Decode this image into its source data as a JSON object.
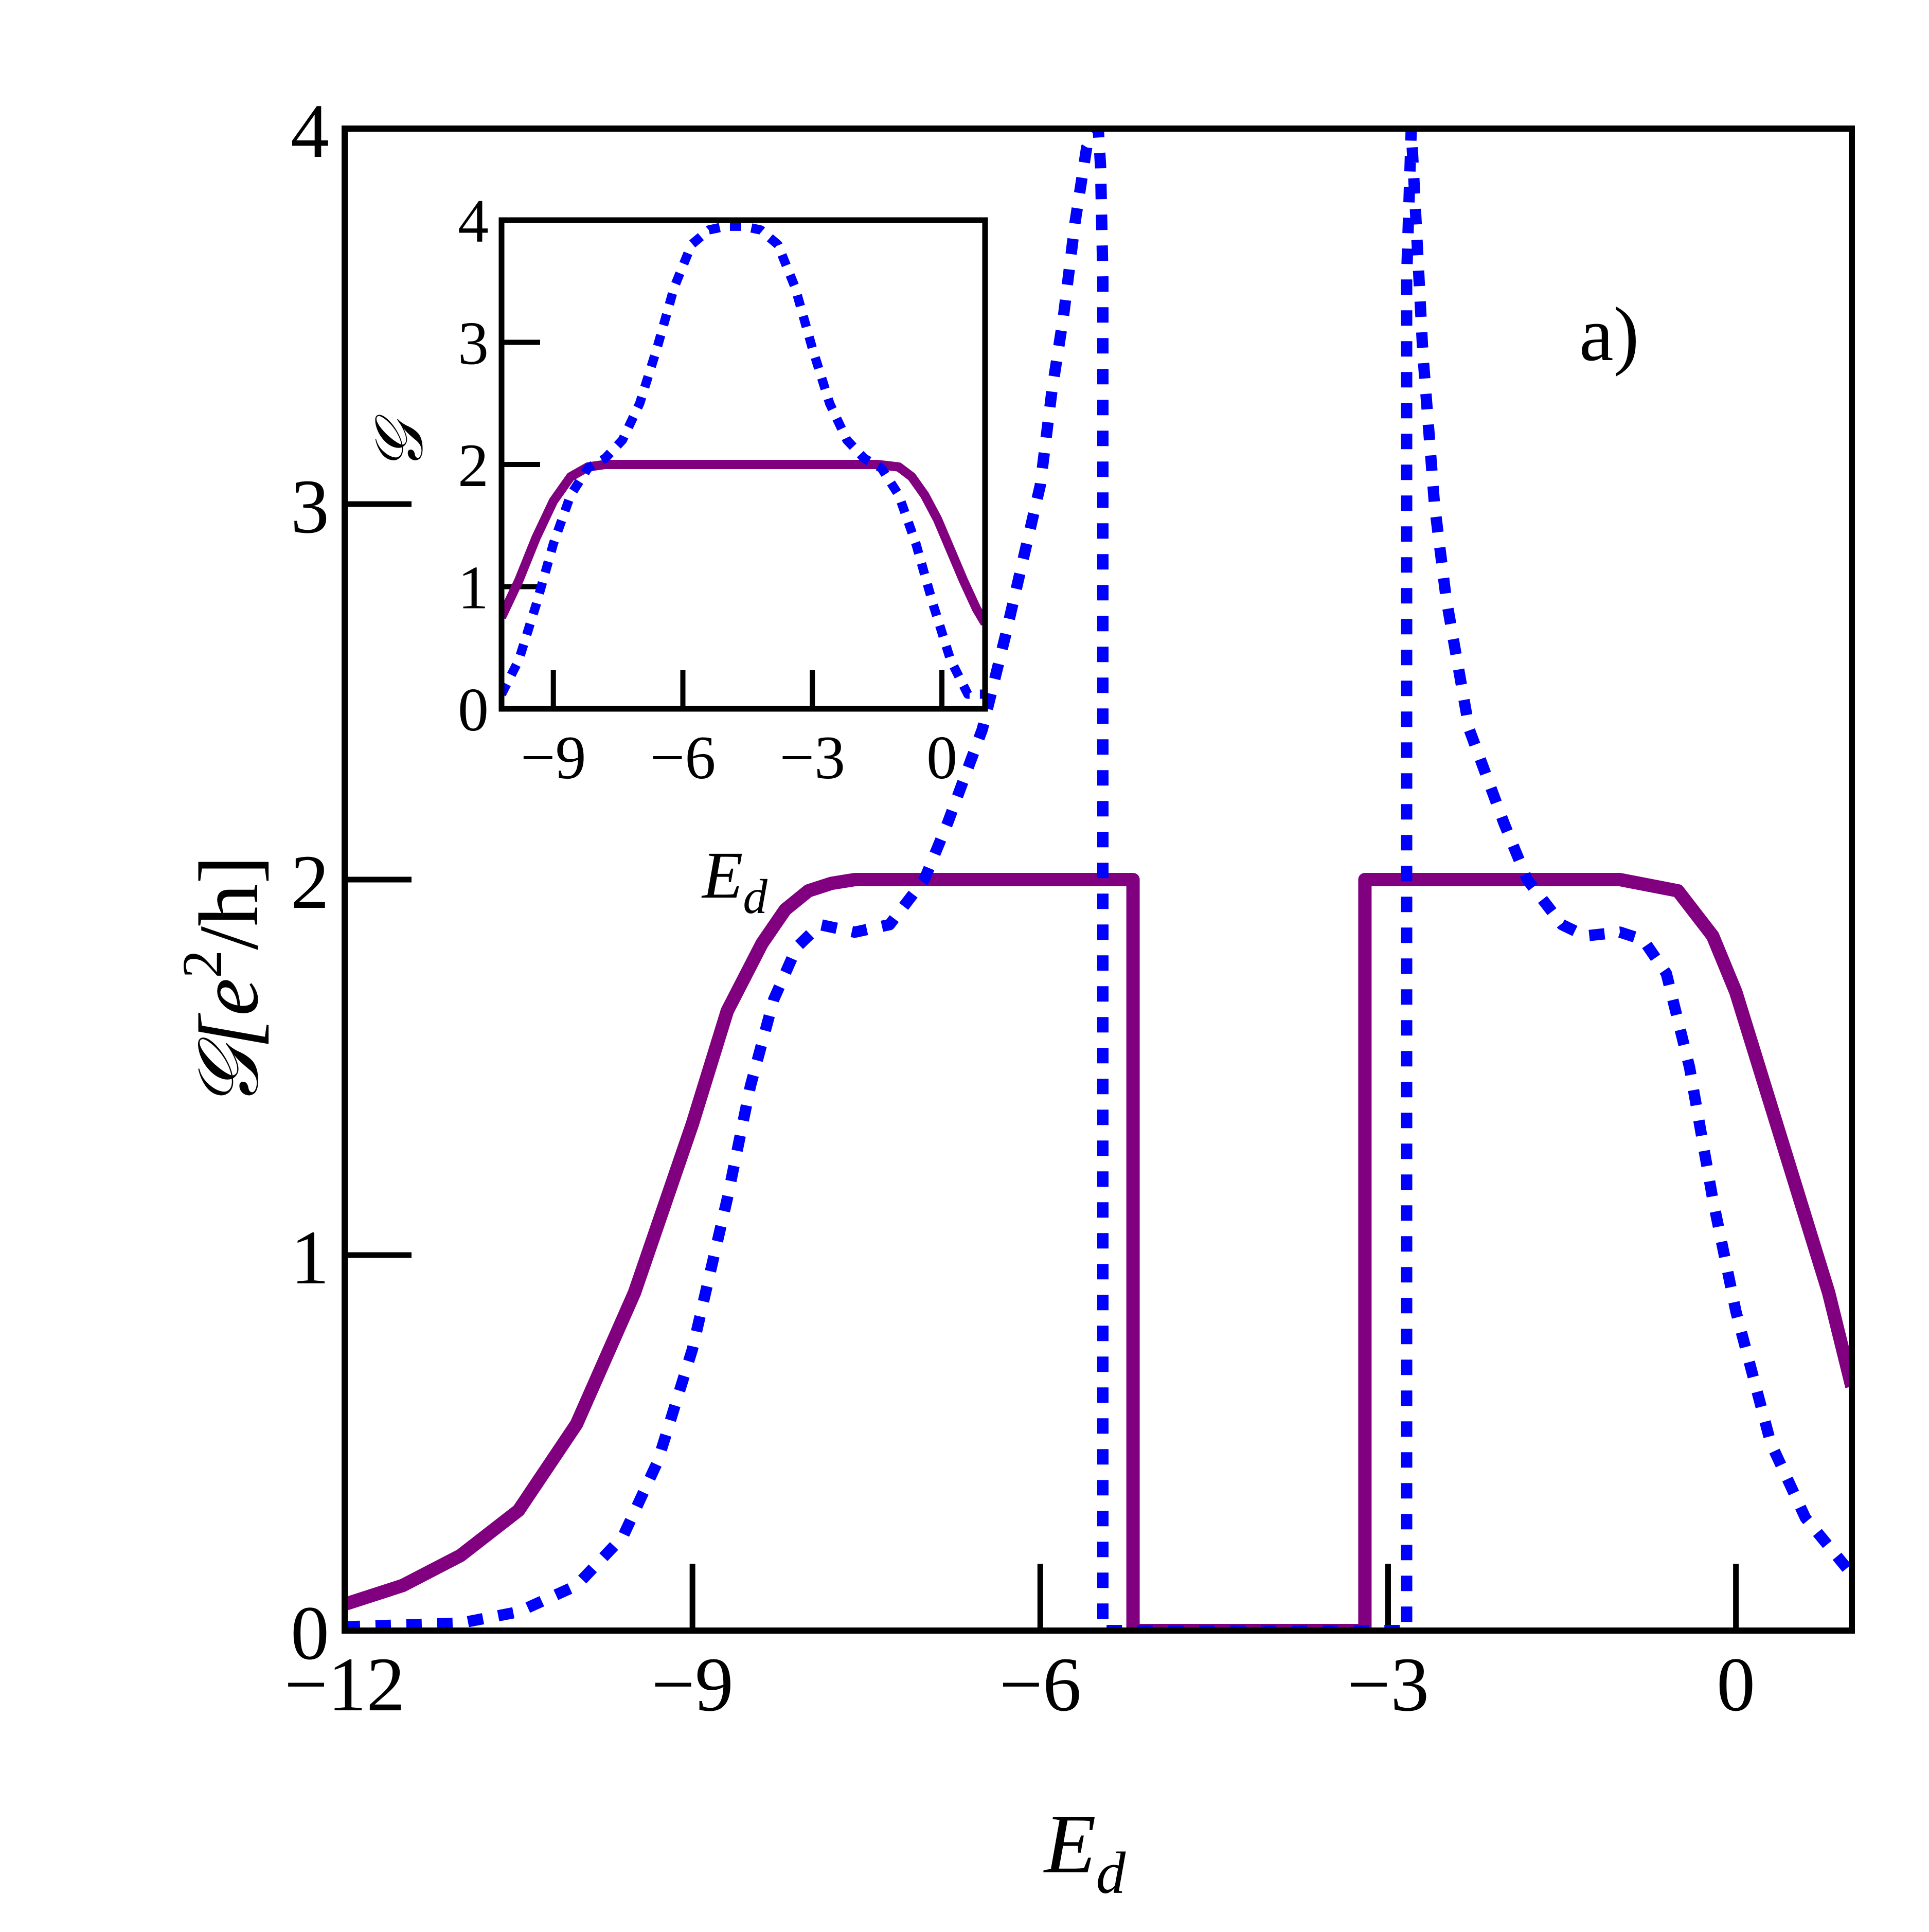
{
  "chart_data": [
    {
      "type": "line",
      "panel_label": "a)",
      "xlabel": "E",
      "xlabel_sub": "d",
      "ylabel": "𝒢[e",
      "ylabel_sup": "2",
      "ylabel_tail": "/h]",
      "xlim": [
        -12,
        1
      ],
      "ylim": [
        0,
        4
      ],
      "xticks": [
        -12,
        -9,
        -6,
        -3,
        0
      ],
      "xtick_labels": [
        "−12",
        "−9",
        "−6",
        "−3",
        "0"
      ],
      "yticks": [
        0,
        1,
        2,
        3,
        4
      ],
      "ytick_labels": [
        "0",
        "1",
        "2",
        "3",
        "4"
      ],
      "grid": false,
      "series": [
        {
          "style": "solid",
          "color": "#800080",
          "x": [
            -12,
            -11.5,
            -11,
            -10.5,
            -10,
            -9.5,
            -9,
            -8.7,
            -8.4,
            -8.2,
            -8,
            -7.8,
            -7.6,
            -7.4,
            -7.2,
            -7,
            -6.5,
            -6,
            -5.5,
            -5.2,
            -5.2,
            -5,
            -4.5,
            -4,
            -3.5,
            -3.2,
            -3.2,
            -3,
            -2.5,
            -2,
            -1.5,
            -1,
            -0.5,
            -0.2,
            0,
            0.2,
            0.5,
            0.8,
            1
          ],
          "y": [
            0.07,
            0.12,
            0.2,
            0.32,
            0.55,
            0.9,
            1.35,
            1.65,
            1.83,
            1.92,
            1.97,
            1.99,
            2,
            2,
            2,
            2,
            2,
            2,
            2,
            2,
            0,
            0,
            0,
            0,
            0,
            0,
            2,
            2,
            2,
            2,
            2,
            2,
            1.97,
            1.85,
            1.7,
            1.5,
            1.2,
            0.9,
            0.65
          ]
        },
        {
          "style": "dotted",
          "color": "#0000ff",
          "x": [
            -12,
            -11,
            -10.5,
            -10,
            -9.6,
            -9.3,
            -9,
            -8.7,
            -8.5,
            -8.3,
            -8.1,
            -7.9,
            -7.6,
            -7.3,
            -7,
            -6.8,
            -6.5,
            -6.3,
            -6,
            -5.9,
            -5.8,
            -5.7,
            -5.6,
            -5.5,
            -5.48,
            -5.46,
            -5.46,
            -5.4,
            -2.9,
            -2.84,
            -2.84,
            -2.8,
            -2.75,
            -2.7,
            -2.6,
            -2.5,
            -2.3,
            -2,
            -1.8,
            -1.5,
            -1.3,
            -1,
            -0.8,
            -0.6,
            -0.4,
            -0.2,
            0,
            0.3,
            0.6,
            1
          ],
          "y": [
            0.01,
            0.02,
            0.05,
            0.12,
            0.25,
            0.45,
            0.75,
            1.15,
            1.45,
            1.68,
            1.82,
            1.88,
            1.86,
            1.88,
            2,
            2.15,
            2.4,
            2.65,
            3.05,
            3.3,
            3.5,
            3.75,
            3.95,
            4,
            3.9,
            3.6,
            0,
            0,
            0,
            0,
            3.6,
            4,
            3.7,
            3.4,
            3.0,
            2.75,
            2.4,
            2.15,
            2.0,
            1.88,
            1.85,
            1.86,
            1.84,
            1.75,
            1.5,
            1.15,
            0.85,
            0.5,
            0.3,
            0.15
          ]
        }
      ]
    },
    {
      "type": "line",
      "role": "inset",
      "xlabel": "E",
      "xlabel_sub": "d",
      "ylabel": "𝒢",
      "xlim": [
        -10.2,
        1
      ],
      "ylim": [
        0,
        4
      ],
      "xticks": [
        -9,
        -6,
        -3,
        0
      ],
      "xtick_labels": [
        "−9",
        "−6",
        "−3",
        "0"
      ],
      "yticks": [
        0,
        1,
        2,
        3,
        4
      ],
      "ytick_labels": [
        "0",
        "1",
        "2",
        "3",
        "4"
      ],
      "grid": false,
      "series": [
        {
          "style": "solid",
          "color": "#800080",
          "x": [
            -10.2,
            -9.8,
            -9.4,
            -9,
            -8.6,
            -8.2,
            -7.8,
            -7,
            -6,
            -5,
            -4,
            -3,
            -2,
            -1.5,
            -1,
            -0.7,
            -0.4,
            -0.1,
            0.2,
            0.5,
            0.8,
            1
          ],
          "y": [
            0.75,
            1.05,
            1.4,
            1.7,
            1.9,
            1.98,
            2,
            2,
            2,
            2,
            2,
            2,
            2,
            2,
            1.98,
            1.9,
            1.75,
            1.55,
            1.3,
            1.05,
            0.82,
            0.7
          ]
        },
        {
          "style": "dotted",
          "color": "#0000ff",
          "x": [
            -10.2,
            -9.8,
            -9.4,
            -9,
            -8.6,
            -8.2,
            -7.8,
            -7.4,
            -7,
            -6.6,
            -6.2,
            -5.8,
            -5.4,
            -5,
            -4.6,
            -4.2,
            -3.8,
            -3.4,
            -3,
            -2.6,
            -2.2,
            -1.8,
            -1.4,
            -1,
            -0.6,
            -0.2,
            0.2,
            0.6,
            1
          ],
          "y": [
            0.12,
            0.4,
            0.85,
            1.35,
            1.75,
            1.97,
            2.05,
            2.2,
            2.5,
            2.95,
            3.45,
            3.8,
            3.92,
            3.95,
            3.95,
            3.92,
            3.8,
            3.45,
            2.95,
            2.5,
            2.2,
            2.05,
            1.97,
            1.75,
            1.35,
            0.85,
            0.4,
            0.12,
            0.12
          ]
        }
      ]
    }
  ]
}
